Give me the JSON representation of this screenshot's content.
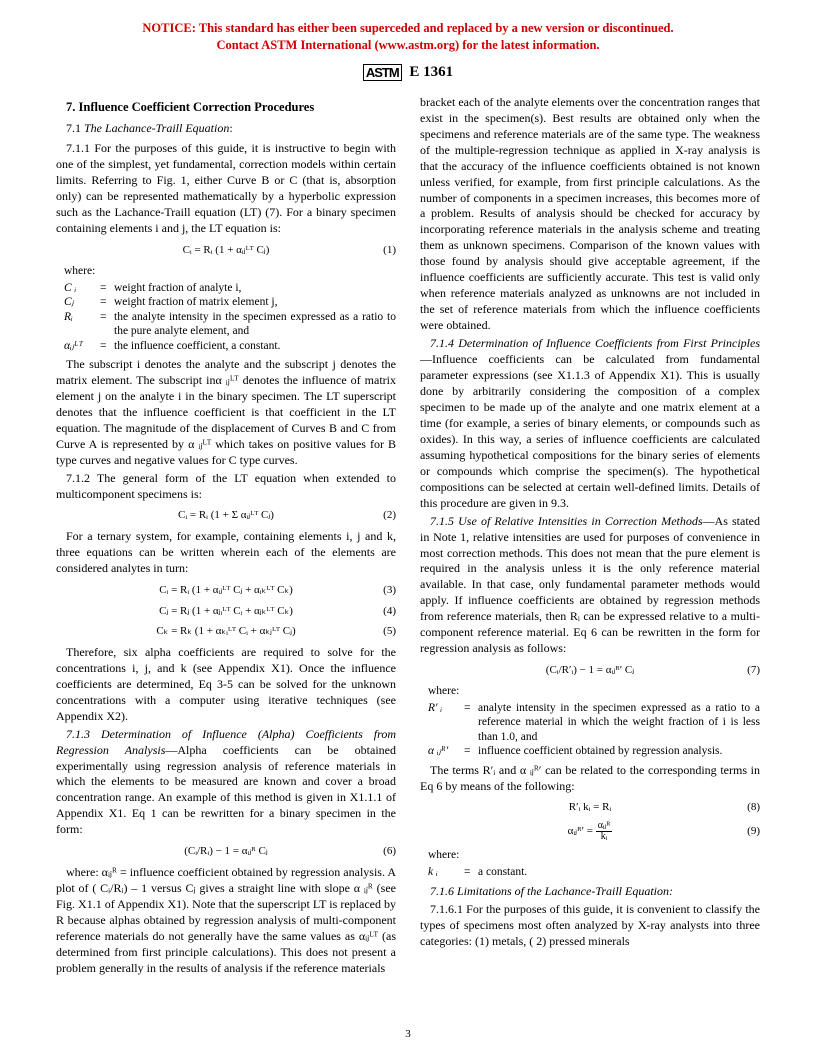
{
  "notice": {
    "line1": "NOTICE: This standard has either been superceded and replaced by a new version or discontinued.",
    "line2": "Contact ASTM International (www.astm.org) for the latest information."
  },
  "header": {
    "logo": "ASTM",
    "designation": "E 1361"
  },
  "s7": {
    "title": "7. Influence Coefficient Correction Procedures",
    "s71": {
      "title_num": "7.1",
      "title_text": "The Lachance-Traill Equation",
      "p7111": "7.1.1 For the purposes of this guide, it is instructive to begin with one of the simplest, yet fundamental, correction models within certain limits. Referring to Fig. 1, either Curve B or C (that is, absorption only) can be represented mathematically by a hyperbolic expression such as the Lachance-Traill equation (LT) (7). For a binary specimen containing elements i and j, the LT equation is:",
      "eq1": "Cᵢ = Rᵢ (1 + αᵢⱼᴸᵀ Cⱼ)",
      "eq1n": "(1)",
      "where": "where:",
      "defs": [
        {
          "sym": "C ᵢ",
          "def": "weight fraction of analyte i,"
        },
        {
          "sym": "Cⱼ",
          "def": "weight fraction of matrix element j,"
        },
        {
          "sym": "Rᵢ",
          "def": "the analyte intensity in the specimen expressed as a ratio to the pure analyte element, and"
        },
        {
          "sym": "αᵢⱼᴸᵀ",
          "def": "the influence coefficient, a constant."
        }
      ],
      "p_sub": "The subscript i denotes the analyte and the subscript j denotes the matrix element. The subscript inα ᵢⱼᴸᵀ denotes the influence of matrix element j on the analyte i in the binary specimen. The LT superscript denotes that the influence coefficient is that coefficient in the LT equation. The magnitude of the displacement of Curves B and C from Curve A is represented by α ᵢⱼᴸᵀ which takes on positive values for B type curves and negative values for C type curves.",
      "p7112": "7.1.2 The general form of the LT equation when extended to multicomponent specimens is:",
      "eq2": "Cᵢ = Rᵢ (1 + Σ αᵢⱼᴸᵀ Cⱼ)",
      "eq2n": "(2)",
      "p_ternary": "For a ternary system, for example, containing elements i, j and k, three equations can be written wherein each of the elements are considered analytes in turn:",
      "eq3": "Cᵢ = Rᵢ (1 + αᵢⱼᴸᵀ Cⱼ + αᵢₖᴸᵀ Cₖ)",
      "eq3n": "(3)",
      "eq4": "Cⱼ = Rⱼ (1 + αⱼᵢᴸᵀ Cᵢ + αⱼₖᴸᵀ Cₖ)",
      "eq4n": "(4)",
      "eq5": "Cₖ = Rₖ (1 + αₖᵢᴸᵀ Cᵢ + αₖⱼᴸᵀ Cⱼ)",
      "eq5n": "(5)",
      "p_therefore": "Therefore, six alpha coefficients are required to solve for the concentrations i, j, and k (see Appendix X1). Once the influence coefficients are determined, Eq 3-5 can be solved for the unknown concentrations with a computer using iterative techniques (see Appendix X2).",
      "p7113_title": "7.1.3 Determination of Influence (Alpha) Coefficients from Regression Analysis",
      "p7113": "—Alpha coefficients can be obtained experimentally using regression analysis of reference materials in which the elements to be measured are known and cover a broad concentration range. An example of this method is given in X1.1.1 of Appendix X1. Eq 1 can be rewritten for a binary specimen in the form:",
      "eq6": "(Cᵢ/Rᵢ) − 1 = αᵢⱼᴿ Cⱼ",
      "eq6n": "(6)",
      "p_where6": "where: αᵢⱼᴿ = influence coefficient obtained by regression analysis. A plot of ( Cᵢ/Rᵢ) – 1 versus Cⱼ gives a straight line with slope α ᵢⱼᴿ (see Fig. X1.1 of Appendix X1). Note that the superscript LT is replaced by R because alphas obtained by regression analysis of multi-component reference materials do not generally have the same values as αᵢⱼᴸᵀ (as determined from first principle calculations). This does not present a problem generally in the results of analysis if the reference materials",
      "p_col2a": "bracket each of the analyte elements over the concentration ranges that exist in the specimen(s). Best results are obtained only when the specimens and reference materials are of the same type. The weakness of the multiple-regression technique as applied in X-ray analysis is that the accuracy of the influence coefficients obtained is not known unless verified, for example, from first principle calculations. As the number of components in a specimen increases, this becomes more of a problem. Results of analysis should be checked for accuracy by incorporating reference materials in the analysis scheme and treating them as unknown specimens. Comparison of the known values with those found by analysis should give acceptable agreement, if the influence coefficients are sufficiently accurate. This test is valid only when reference materials analyzed as unknowns are not included in the set of reference materials from which the influence coefficients were obtained.",
      "p7114_title": "7.1.4 Determination of Influence Coefficients from First Principles",
      "p7114": "—Influence coefficients can be calculated from fundamental parameter expressions (see X1.1.3 of Appendix X1). This is usually done by arbitrarily considering the composition of a complex specimen to be made up of the analyte and one matrix element at a time (for example, a series of binary elements, or compounds such as oxides). In this way, a series of influence coefficients are calculated assuming hypothetical compositions for the binary series of elements or compounds which comprise the specimen(s). The hypothetical compositions can be selected at certain well-defined limits. Details of this procedure are given in 9.3.",
      "p7115_title": "7.1.5 Use of Relative Intensities in Correction Methods",
      "p7115": "—As stated in Note 1, relative intensities are used for purposes of convenience in most correction methods. This does not mean that the pure element is required in the analysis unless it is the only reference material available. In that case, only fundamental parameter methods would apply. If influence coefficients are obtained by regression methods from reference materials, then Rᵢ can be expressed relative to a multi-component reference material. Eq 6 can be rewritten in the form for regression analysis as follows:",
      "eq7": "(Cᵢ/R′ᵢ) − 1 = αᵢⱼᴿ′ Cⱼ",
      "eq7n": "(7)",
      "where2": "where:",
      "defs2": [
        {
          "sym": "R′ ᵢ",
          "def": "analyte intensity in the specimen expressed as a ratio to a reference material in which the weight fraction of i is less than 1.0, and"
        },
        {
          "sym": "α ᵢⱼᴿ′",
          "def": "influence coefficient obtained by regression analysis."
        }
      ],
      "p_terms": "The terms R′ᵢ and α ᵢⱼᴿ′ can be related to the corresponding terms in Eq 6 by means of the following:",
      "eq8": "R′ᵢ kᵢ = Rᵢ",
      "eq8n": "(8)",
      "eq9l": "αᵢⱼᴿ′ =",
      "eq9num": "αᵢⱼᴿ",
      "eq9den": "kᵢ",
      "eq9n": "(9)",
      "where3": "where:",
      "defs3": [
        {
          "sym": "k ᵢ",
          "def": "a constant."
        }
      ],
      "p7116": "7.1.6 Limitations of the Lachance-Traill Equation:",
      "p71161": "7.1.6.1 For the purposes of this guide, it is convenient to classify the types of specimens most often analyzed by X-ray analysts into three categories: (1) metals, ( 2) pressed minerals"
    }
  },
  "pgnum": "3"
}
